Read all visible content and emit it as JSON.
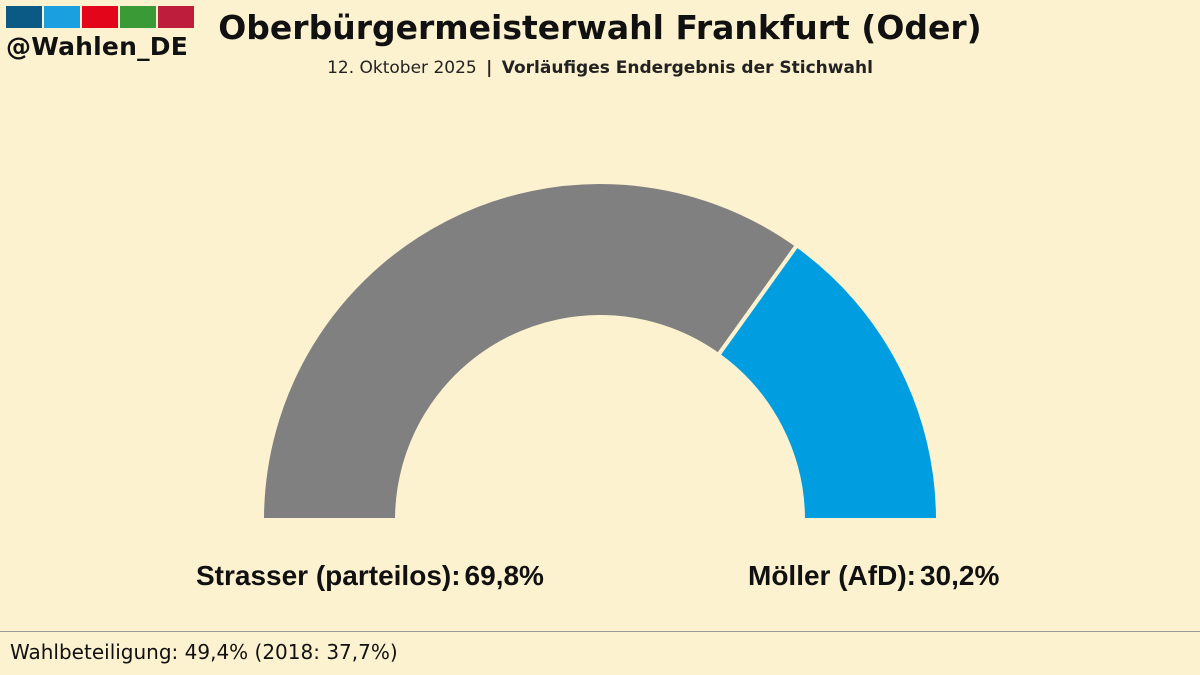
{
  "brand": {
    "handle": "@Wahlen_DE",
    "stripe_colors": [
      "#0b5a86",
      "#1aa0e0",
      "#e3061b",
      "#3a9a35",
      "#be1e3c"
    ]
  },
  "header": {
    "title": "Oberbürgermeisterwahl Frankfurt (Oder)",
    "date": "12. Oktober 2025",
    "separator": "|",
    "status": "Vorläufiges Endergebnis der Stichwahl"
  },
  "chart_data": {
    "type": "pie",
    "variant": "semi-donut",
    "series": [
      {
        "name": "Strasser (parteilos)",
        "label": "Strasser (parteilos):",
        "value": 69.8,
        "value_label": "69,8%",
        "color": "#808080"
      },
      {
        "name": "Möller (AfD)",
        "label": "Möller (AfD):",
        "value": 30.2,
        "value_label": "30,2%",
        "color": "#009ee0"
      }
    ]
  },
  "footer": {
    "turnout": "Wahlbeteiligung: 49,4% (2018: 37,7%)"
  }
}
